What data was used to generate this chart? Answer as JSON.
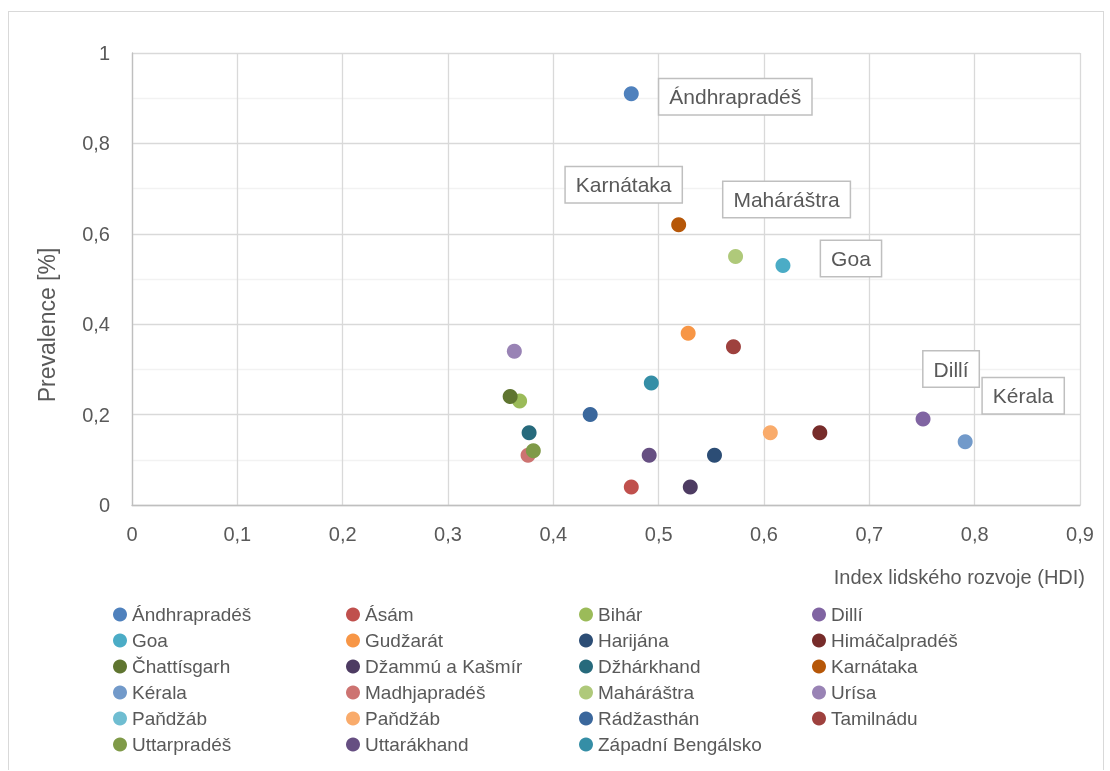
{
  "chart_data": {
    "type": "scatter",
    "xlabel": "Index lidského rozvoje (HDI)",
    "ylabel": "Prevalence [%]",
    "xlim": [
      0,
      0.9
    ],
    "xticks": [
      0,
      {
        "value": 0.1,
        "label": "0,1"
      },
      {
        "value": 0.2,
        "label": "0,2"
      },
      {
        "value": 0.3,
        "label": "0,3"
      },
      {
        "value": 0.4,
        "label": "0,4"
      },
      {
        "value": 0.5,
        "label": "0,5"
      },
      {
        "value": 0.6,
        "label": "0,6"
      },
      {
        "value": 0.7,
        "label": "0,7"
      },
      {
        "value": 0.8,
        "label": "0,8"
      },
      {
        "value": 0.9,
        "label": "0,9"
      }
    ],
    "ylim": [
      0,
      1
    ],
    "yticks": [
      0,
      {
        "value": 0.2,
        "label": "0,2"
      },
      {
        "value": 0.4,
        "label": "0,4"
      },
      {
        "value": 0.6,
        "label": "0,6"
      },
      {
        "value": 0.8,
        "label": "0,8"
      },
      1
    ],
    "grid": true,
    "legend": "bottom",
    "marker": "circle",
    "annotations": [
      {
        "text": "Ándhrapradéš",
        "x": 0.474,
        "y": 0.91
      },
      {
        "text": "Karnátaka",
        "x": 0.519,
        "y": 0.62
      },
      {
        "text": "Maháráštra",
        "x": 0.573,
        "y": 0.55
      },
      {
        "text": "Goa",
        "x": 0.618,
        "y": 0.53
      },
      {
        "text": "Dillí",
        "x": 0.751,
        "y": 0.19
      },
      {
        "text": "Kérala",
        "x": 0.791,
        "y": 0.14
      }
    ],
    "series": [
      {
        "name": "Ándhrapradéš",
        "color": "#4f81bd",
        "x": [
          0.474
        ],
        "values": [
          0.91
        ]
      },
      {
        "name": "Ásám",
        "color": "#c0504d",
        "x": [
          0.474
        ],
        "values": [
          0.04
        ]
      },
      {
        "name": "Bihár",
        "color": "#9bbb59",
        "x": [
          0.368
        ],
        "values": [
          0.23
        ]
      },
      {
        "name": "Dillí",
        "color": "#8064a2",
        "x": [
          0.751
        ],
        "values": [
          0.19
        ]
      },
      {
        "name": "Goa",
        "color": "#4bacc6",
        "x": [
          0.618
        ],
        "values": [
          0.53
        ]
      },
      {
        "name": "Gudžarát",
        "color": "#f79646",
        "x": [
          0.528
        ],
        "values": [
          0.38
        ]
      },
      {
        "name": "Harijána",
        "color": "#2c4d75",
        "x": [
          0.553
        ],
        "values": [
          0.11
        ]
      },
      {
        "name": "Himáčalpradéš",
        "color": "#772c2a",
        "x": [
          0.653
        ],
        "values": [
          0.16
        ]
      },
      {
        "name": "Čhattísgarh",
        "color": "#5f7530",
        "x": [
          0.359
        ],
        "values": [
          0.24
        ]
      },
      {
        "name": "Džammú a Kašmír",
        "color": "#4d3b62",
        "x": [
          0.53
        ],
        "values": [
          0.04
        ]
      },
      {
        "name": "Džhárkhand",
        "color": "#276a7c",
        "x": [
          0.377
        ],
        "values": [
          0.16
        ]
      },
      {
        "name": "Karnátaka",
        "color": "#b65708",
        "x": [
          0.519
        ],
        "values": [
          0.62
        ]
      },
      {
        "name": "Kérala",
        "color": "#729aca",
        "x": [
          0.791
        ],
        "values": [
          0.14
        ]
      },
      {
        "name": "Madhjapradéš",
        "color": "#cd7371",
        "x": [
          0.376
        ],
        "values": [
          0.11
        ]
      },
      {
        "name": "Maháráštra",
        "color": "#afc97a",
        "x": [
          0.573
        ],
        "values": [
          0.55
        ]
      },
      {
        "name": "Urísa",
        "color": "#9983b5",
        "x": [
          0.363
        ],
        "values": [
          0.34
        ]
      },
      {
        "name": "Paňdžáb",
        "color": "#6fbdd1",
        "x": [
          null
        ],
        "values": [
          null
        ]
      },
      {
        "name": "Paňdžáb",
        "color": "#f9ab6b",
        "x": [
          0.606
        ],
        "values": [
          0.16
        ]
      },
      {
        "name": "Rádžasthán",
        "color": "#3a679c",
        "x": [
          0.435
        ],
        "values": [
          0.2
        ]
      },
      {
        "name": "Tamilnádu",
        "color": "#9e413e",
        "x": [
          0.571
        ],
        "values": [
          0.35
        ]
      },
      {
        "name": "Uttarpradéš",
        "color": "#7f9a48",
        "x": [
          0.381
        ],
        "values": [
          0.12
        ]
      },
      {
        "name": "Uttarákhand",
        "color": "#664f82",
        "x": [
          0.491
        ],
        "values": [
          0.11
        ]
      },
      {
        "name": "Západní Bengálsko",
        "color": "#358ea6",
        "x": [
          0.493
        ],
        "values": [
          0.27
        ]
      }
    ]
  }
}
